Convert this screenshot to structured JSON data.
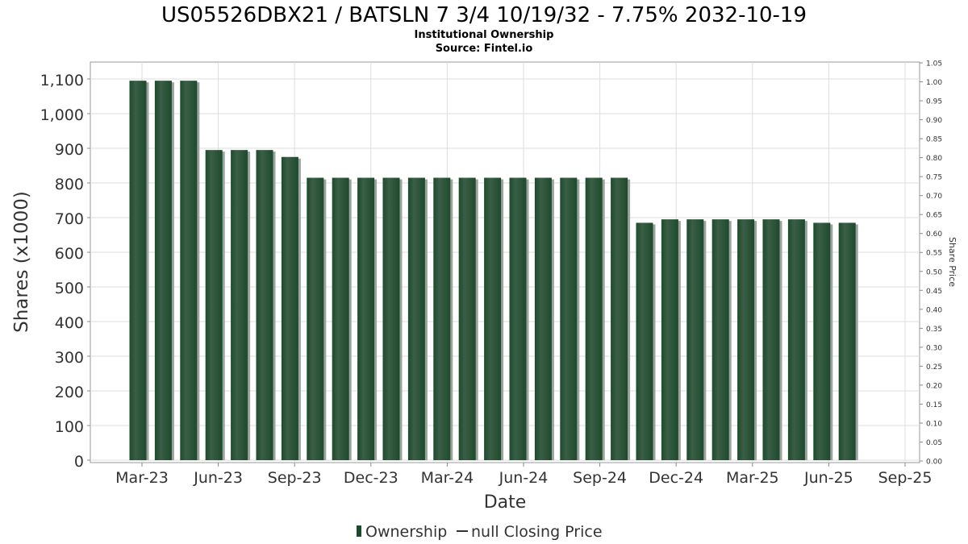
{
  "title": "US05526DBX21 / BATSLN 7 3/4 10/19/32 - 7.75% 2032-10-19",
  "subtitle": "Institutional Ownership",
  "source": "Source: Fintel.io",
  "legend": {
    "ownership_label": "Ownership",
    "price_label": "null Closing Price"
  },
  "colors": {
    "bar": "#1e4a2c",
    "bar_light": "#3a5e46",
    "bar_shadow": "#9aa39c",
    "grid": "#dddddd",
    "axis": "#888888"
  },
  "chart_data": {
    "type": "bar",
    "xlabel": "Date",
    "ylabel": "Shares (x1000)",
    "y2label": "Share Price",
    "ylim": [
      0,
      1150
    ],
    "y2lim": [
      0,
      1.05
    ],
    "yticks": [
      "0",
      "100",
      "200",
      "300",
      "400",
      "500",
      "600",
      "700",
      "800",
      "900",
      "1,000",
      "1,100"
    ],
    "y2ticks": [
      "0.00",
      "0.05",
      "0.10",
      "0.15",
      "0.20",
      "0.25",
      "0.30",
      "0.35",
      "0.40",
      "0.45",
      "0.50",
      "0.55",
      "0.60",
      "0.65",
      "0.70",
      "0.75",
      "0.80",
      "0.85",
      "0.90",
      "0.95",
      "1.00",
      "1.05"
    ],
    "xticks": [
      "Mar-23",
      "Jun-23",
      "Sep-23",
      "Dec-23",
      "Mar-24",
      "Jun-24",
      "Sep-24",
      "Dec-24",
      "Mar-25",
      "Jun-25",
      "Sep-25"
    ],
    "grid": true,
    "legend_position": "bottom",
    "series": [
      {
        "name": "Ownership",
        "values": [
          1095,
          1095,
          1095,
          895,
          895,
          895,
          875,
          815,
          815,
          815,
          815,
          815,
          815,
          815,
          815,
          815,
          815,
          815,
          815,
          815,
          685,
          695,
          695,
          695,
          695,
          695,
          695,
          685,
          685
        ]
      }
    ]
  }
}
